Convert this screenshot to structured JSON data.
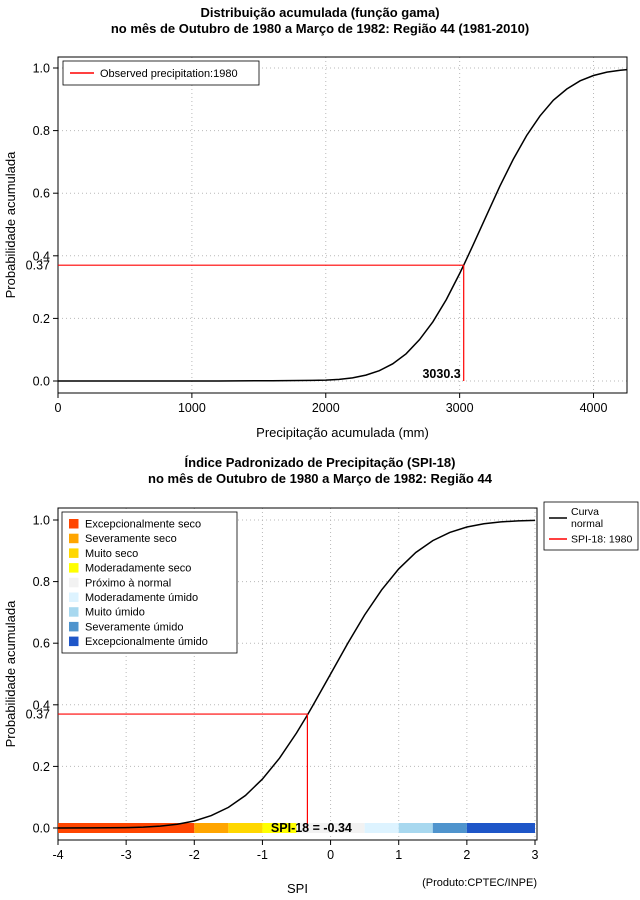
{
  "chart_data": [
    {
      "type": "line",
      "id": "gamma-cumulative-distribution",
      "title": [
        "Distribuição acumulada (função gama)",
        "no mês de Outubro de 1980 a Março de 1982: Região 44 (1981-2010)"
      ],
      "xlabel": "Precipitação acumulada (mm)",
      "ylabel": "Probabilidade acumulada",
      "xlim": [
        0,
        4250
      ],
      "ylim": [
        0,
        1
      ],
      "xticks": [
        0,
        1000,
        2000,
        3000,
        4000
      ],
      "yticks": [
        0,
        0.2,
        0.4,
        0.6,
        0.8,
        1
      ],
      "grid": true,
      "legend_position": "top-left",
      "legend": [
        {
          "label": "Observed precipitation:1980",
          "color": "#FF0000",
          "type": "line"
        }
      ],
      "series": [
        {
          "name": "Distribuição acumulada (função gama)",
          "color": "#000000",
          "points": [
            [
              0,
              0
            ],
            [
              400,
              0
            ],
            [
              800,
              0
            ],
            [
              1200,
              0
            ],
            [
              1600,
              0.001
            ],
            [
              1900,
              0.002
            ],
            [
              2000,
              0.003
            ],
            [
              2100,
              0.005
            ],
            [
              2200,
              0.01
            ],
            [
              2300,
              0.019
            ],
            [
              2400,
              0.033
            ],
            [
              2500,
              0.055
            ],
            [
              2600,
              0.087
            ],
            [
              2700,
              0.132
            ],
            [
              2800,
              0.189
            ],
            [
              2900,
              0.26
            ],
            [
              3000,
              0.343
            ],
            [
              3030.3,
              0.37
            ],
            [
              3100,
              0.434
            ],
            [
              3200,
              0.528
            ],
            [
              3300,
              0.622
            ],
            [
              3400,
              0.708
            ],
            [
              3500,
              0.784
            ],
            [
              3600,
              0.847
            ],
            [
              3700,
              0.897
            ],
            [
              3800,
              0.933
            ],
            [
              3900,
              0.959
            ],
            [
              4000,
              0.976
            ],
            [
              4100,
              0.987
            ],
            [
              4200,
              0.993
            ],
            [
              4250,
              0.995
            ]
          ]
        }
      ],
      "annotation": {
        "probability": 0.37,
        "probability_label": "0.37",
        "x_value": 3030.3,
        "x_label": "3030.3",
        "color": "#FF0000"
      }
    },
    {
      "type": "line",
      "id": "spi18-standardized-precipitation-index",
      "title": [
        "Índice Padronizado de Precipitação (SPI-18)",
        "no mês de Outubro de 1980 a Março de 1982: Região 44"
      ],
      "xlabel": "SPI",
      "ylabel": "Probabilidade acumulada",
      "xlim": [
        -4,
        3
      ],
      "ylim": [
        0,
        1
      ],
      "xticks": [
        -4,
        -3,
        -2,
        -1,
        0,
        1,
        2,
        3
      ],
      "yticks": [
        0,
        0.2,
        0.4,
        0.6,
        0.8,
        1
      ],
      "grid": true,
      "legend_categories": [
        {
          "label": "Excepcionalmente seco",
          "color": "#FF4500"
        },
        {
          "label": "Severamente seco",
          "color": "#FFA500"
        },
        {
          "label": "Muito seco",
          "color": "#FFD700"
        },
        {
          "label": "Moderadamente seco",
          "color": "#FFFF00"
        },
        {
          "label": "Próximo à normal",
          "color": "#F2F2F2"
        },
        {
          "label": "Moderadamente úmido",
          "color": "#DDF3FF"
        },
        {
          "label": "Muito úmido",
          "color": "#A8D8EF"
        },
        {
          "label": "Severamente úmido",
          "color": "#4F94CD"
        },
        {
          "label": "Excepcionalmente úmido",
          "color": "#1E56C8"
        }
      ],
      "legend_right": [
        {
          "label": "Curva normal",
          "label_lines": [
            "Curva",
            "normal"
          ],
          "color": "#000000",
          "type": "line"
        },
        {
          "label": "SPI-18: 1980",
          "label_lines": [
            "SPI-18: 1980"
          ],
          "color": "#FF0000",
          "type": "line"
        }
      ],
      "series": [
        {
          "name": "Curva normal",
          "color": "#000000",
          "points": [
            [
              -4,
              3e-05
            ],
            [
              -3.5,
              0.0002
            ],
            [
              -3,
              0.0013
            ],
            [
              -2.75,
              0.003
            ],
            [
              -2.5,
              0.0062
            ],
            [
              -2.25,
              0.0122
            ],
            [
              -2,
              0.0228
            ],
            [
              -1.75,
              0.0401
            ],
            [
              -1.5,
              0.0668
            ],
            [
              -1.25,
              0.1056
            ],
            [
              -1,
              0.1587
            ],
            [
              -0.75,
              0.2266
            ],
            [
              -0.5,
              0.3085
            ],
            [
              -0.34,
              0.3669
            ],
            [
              -0.25,
              0.4013
            ],
            [
              0,
              0.5
            ],
            [
              0.25,
              0.5987
            ],
            [
              0.5,
              0.6915
            ],
            [
              0.75,
              0.7734
            ],
            [
              1,
              0.8413
            ],
            [
              1.25,
              0.8944
            ],
            [
              1.5,
              0.9332
            ],
            [
              1.75,
              0.9599
            ],
            [
              2,
              0.9772
            ],
            [
              2.25,
              0.9878
            ],
            [
              2.5,
              0.9938
            ],
            [
              2.75,
              0.997
            ],
            [
              3,
              0.9987
            ]
          ]
        }
      ],
      "annotation": {
        "probability": 0.37,
        "probability_label": "0.37",
        "x_value": -0.34,
        "text": "SPI-18 = -0.34",
        "color": "#FF0000"
      },
      "category_bar": [
        {
          "from": -4,
          "to": -2,
          "color": "#FF4500"
        },
        {
          "from": -2,
          "to": -1.5,
          "color": "#FFA500"
        },
        {
          "from": -1.5,
          "to": -1,
          "color": "#FFD700"
        },
        {
          "from": -1,
          "to": -0.5,
          "color": "#FFFF00"
        },
        {
          "from": -0.5,
          "to": 0.5,
          "color": "#F2F2F2"
        },
        {
          "from": 0.5,
          "to": 1,
          "color": "#DDF3FF"
        },
        {
          "from": 1,
          "to": 1.5,
          "color": "#A8D8EF"
        },
        {
          "from": 1.5,
          "to": 2,
          "color": "#4F94CD"
        },
        {
          "from": 2,
          "to": 3,
          "color": "#1E56C8"
        }
      ],
      "footer": "(Produto:CPTEC/INPE)"
    }
  ]
}
